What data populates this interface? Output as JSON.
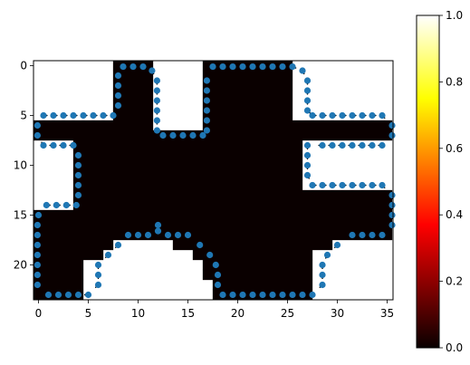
{
  "chart_data": {
    "type": "heatmap",
    "title": "",
    "xlabel": "",
    "ylabel": "",
    "xlim": [
      -0.5,
      35.5
    ],
    "ylim": [
      23.5,
      -0.5
    ],
    "x_ticks": [
      0,
      5,
      10,
      15,
      20,
      25,
      30,
      35
    ],
    "y_ticks": [
      0,
      5,
      10,
      15,
      20
    ],
    "colormap": "hot",
    "colorbar": {
      "min": 0.0,
      "max": 1.0,
      "ticks": [
        0.0,
        0.2,
        0.4,
        0.6,
        0.8,
        1.0
      ],
      "tick_labels": [
        "0.0",
        "0.2",
        "0.4",
        "0.6",
        "0.8",
        "1.0"
      ]
    },
    "colors": {
      "filled": "#0a0000",
      "empty": "#ffffff",
      "marker": "#1f77b4",
      "arrow": "#000000"
    },
    "mask_runs": [
      [
        [
          8,
          11
        ],
        [
          17,
          25
        ]
      ],
      [
        [
          8,
          11
        ],
        [
          17,
          25
        ]
      ],
      [
        [
          8,
          11
        ],
        [
          17,
          25
        ]
      ],
      [
        [
          8,
          11
        ],
        [
          17,
          25
        ]
      ],
      [
        [
          8,
          11
        ],
        [
          17,
          25
        ]
      ],
      [
        [
          8,
          11
        ],
        [
          17,
          25
        ]
      ],
      [
        [
          0,
          11
        ],
        [
          17,
          35
        ]
      ],
      [
        [
          0,
          35
        ]
      ],
      [
        [
          4,
          26
        ]
      ],
      [
        [
          4,
          26
        ]
      ],
      [
        [
          4,
          26
        ]
      ],
      [
        [
          4,
          26
        ]
      ],
      [
        [
          4,
          26
        ]
      ],
      [
        [
          4,
          35
        ]
      ],
      [
        [
          4,
          35
        ]
      ],
      [
        [
          0,
          35
        ]
      ],
      [
        [
          0,
          35
        ]
      ],
      [
        [
          0,
          35
        ]
      ],
      [
        [
          0,
          7
        ],
        [
          14,
          29
        ]
      ],
      [
        [
          0,
          6
        ],
        [
          16,
          27
        ]
      ],
      [
        [
          0,
          4
        ],
        [
          17,
          27
        ]
      ],
      [
        [
          0,
          4
        ],
        [
          17,
          27
        ]
      ],
      [
        [
          0,
          4
        ],
        [
          18,
          27
        ]
      ],
      [
        [
          0,
          4
        ],
        [
          18,
          27
        ]
      ]
    ],
    "boundary_points": [
      [
        8.5,
        0.1
      ],
      [
        9.5,
        0.1
      ],
      [
        10.5,
        0.1
      ],
      [
        11.4,
        0.5
      ],
      [
        11.9,
        1.5
      ],
      [
        11.9,
        2.5
      ],
      [
        11.9,
        3.5
      ],
      [
        11.9,
        4.5
      ],
      [
        11.9,
        5.5
      ],
      [
        11.9,
        6.5
      ],
      [
        12.5,
        7.0
      ],
      [
        13.5,
        7.0
      ],
      [
        14.5,
        7.0
      ],
      [
        15.5,
        7.0
      ],
      [
        16.5,
        7.0
      ],
      [
        16.9,
        6.5
      ],
      [
        16.9,
        5.5
      ],
      [
        16.9,
        4.5
      ],
      [
        16.9,
        3.5
      ],
      [
        16.9,
        2.5
      ],
      [
        16.9,
        1.5
      ],
      [
        17.5,
        0.1
      ],
      [
        18.5,
        0.1
      ],
      [
        19.5,
        0.1
      ],
      [
        20.5,
        0.1
      ],
      [
        21.5,
        0.1
      ],
      [
        22.5,
        0.1
      ],
      [
        23.5,
        0.1
      ],
      [
        24.5,
        0.1
      ],
      [
        25.5,
        0.1
      ],
      [
        26.5,
        0.5
      ],
      [
        27.0,
        1.5
      ],
      [
        27.0,
        2.5
      ],
      [
        27.0,
        3.5
      ],
      [
        27.0,
        4.5
      ],
      [
        27.5,
        5.0
      ],
      [
        28.5,
        5.0
      ],
      [
        29.5,
        5.0
      ],
      [
        30.5,
        5.0
      ],
      [
        31.5,
        5.0
      ],
      [
        32.5,
        5.0
      ],
      [
        33.5,
        5.0
      ],
      [
        34.5,
        5.0
      ],
      [
        35.5,
        6.0
      ],
      [
        35.5,
        7.0
      ],
      [
        34.5,
        8.0
      ],
      [
        33.5,
        8.0
      ],
      [
        32.5,
        8.0
      ],
      [
        31.5,
        8.0
      ],
      [
        30.5,
        8.0
      ],
      [
        29.5,
        8.0
      ],
      [
        28.5,
        8.0
      ],
      [
        27.0,
        8.0
      ],
      [
        27.0,
        9.0
      ],
      [
        27.0,
        10.0
      ],
      [
        27.0,
        11.0
      ],
      [
        27.5,
        12.0
      ],
      [
        28.5,
        12.0
      ],
      [
        29.5,
        12.0
      ],
      [
        30.5,
        12.0
      ],
      [
        31.5,
        12.0
      ],
      [
        32.5,
        12.0
      ],
      [
        33.5,
        12.0
      ],
      [
        34.5,
        12.0
      ],
      [
        35.5,
        13.0
      ],
      [
        35.5,
        14.0
      ],
      [
        35.5,
        15.0
      ],
      [
        35.5,
        16.0
      ],
      [
        34.5,
        17.0
      ],
      [
        33.5,
        17.0
      ],
      [
        32.5,
        17.0
      ],
      [
        31.5,
        17.0
      ],
      [
        30.0,
        18.0
      ],
      [
        29.0,
        19.0
      ],
      [
        28.5,
        20.0
      ],
      [
        28.5,
        21.0
      ],
      [
        28.5,
        22.0
      ],
      [
        27.5,
        23.0
      ],
      [
        26.5,
        23.0
      ],
      [
        25.5,
        23.0
      ],
      [
        24.5,
        23.0
      ],
      [
        23.5,
        23.0
      ],
      [
        22.5,
        23.0
      ],
      [
        21.5,
        23.0
      ],
      [
        20.5,
        23.0
      ],
      [
        19.5,
        23.0
      ],
      [
        18.5,
        23.0
      ],
      [
        18.0,
        22.0
      ],
      [
        18.0,
        21.0
      ],
      [
        17.8,
        20.0
      ],
      [
        17.2,
        19.0
      ],
      [
        16.2,
        18.0
      ],
      [
        15.0,
        17.0
      ],
      [
        14.0,
        17.0
      ],
      [
        13.0,
        17.0
      ],
      [
        12.0,
        16.6
      ],
      [
        12.0,
        16.0
      ],
      [
        11.0,
        17.0
      ],
      [
        10.0,
        17.0
      ],
      [
        9.0,
        17.0
      ],
      [
        8.0,
        18.0
      ],
      [
        7.0,
        19.0
      ],
      [
        6.0,
        20.0
      ],
      [
        6.0,
        21.0
      ],
      [
        6.0,
        22.0
      ],
      [
        5.0,
        23.0
      ],
      [
        4.0,
        23.0
      ],
      [
        3.0,
        23.0
      ],
      [
        2.0,
        23.0
      ],
      [
        1.0,
        23.0
      ],
      [
        -0.1,
        22.0
      ],
      [
        -0.1,
        21.0
      ],
      [
        -0.1,
        20.0
      ],
      [
        -0.1,
        19.0
      ],
      [
        -0.1,
        18.0
      ],
      [
        -0.1,
        17.0
      ],
      [
        -0.1,
        16.0
      ],
      [
        0.0,
        15.0
      ],
      [
        0.8,
        14.0
      ],
      [
        1.8,
        14.0
      ],
      [
        2.8,
        14.0
      ],
      [
        3.8,
        14.0
      ],
      [
        4.0,
        13.0
      ],
      [
        4.0,
        12.0
      ],
      [
        4.0,
        11.0
      ],
      [
        4.0,
        10.0
      ],
      [
        4.0,
        9.0
      ],
      [
        3.5,
        8.0
      ],
      [
        2.5,
        8.0
      ],
      [
        1.5,
        8.0
      ],
      [
        0.5,
        8.0
      ],
      [
        -0.1,
        7.0
      ],
      [
        -0.1,
        6.0
      ],
      [
        0.5,
        5.0
      ],
      [
        1.5,
        5.0
      ],
      [
        2.5,
        5.0
      ],
      [
        3.5,
        5.0
      ],
      [
        4.5,
        5.0
      ],
      [
        5.5,
        5.0
      ],
      [
        6.5,
        5.0
      ],
      [
        7.5,
        5.0
      ],
      [
        8.0,
        4.0
      ],
      [
        8.0,
        3.0
      ],
      [
        8.0,
        2.0
      ],
      [
        8.0,
        1.0
      ]
    ]
  }
}
